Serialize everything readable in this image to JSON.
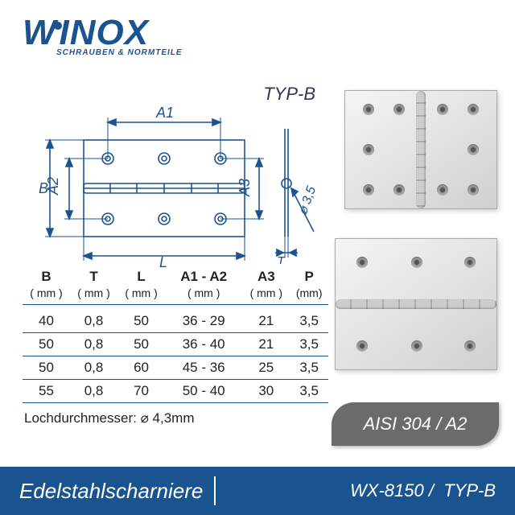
{
  "brand": {
    "name": "WINOX",
    "tagline": "SCHRAUBEN & NORMTEILE"
  },
  "variant_label": "TYP-B",
  "drawing": {
    "dims": {
      "L": "L",
      "B": "B",
      "A1": "A1",
      "A2": "A2",
      "A3": "A3",
      "T": "T",
      "pin": "⌀ 3,5"
    },
    "line_color": "#1a5490",
    "hole_spacing": {
      "cols": [
        0.2,
        0.5,
        0.8
      ],
      "rows": [
        0.28,
        0.72
      ]
    }
  },
  "table": {
    "columns": [
      "B",
      "T",
      "L",
      "A1 - A2",
      "A3",
      "P"
    ],
    "unit": "( mm )",
    "unit_p": "(mm)",
    "rows": [
      [
        "40",
        "0,8",
        "50",
        "36 - 29",
        "21",
        "3,5"
      ],
      [
        "50",
        "0,8",
        "50",
        "36 - 40",
        "21",
        "3,5"
      ],
      [
        "50",
        "0,8",
        "60",
        "45 - 36",
        "25",
        "3,5"
      ],
      [
        "55",
        "0,8",
        "70",
        "50 - 40",
        "30",
        "3,5"
      ]
    ]
  },
  "hole_note": "Lochdurchmesser: ⌀ 4,3mm",
  "material_badge": "AISI 304 / A2",
  "footer": {
    "title": "Edelstahlscharniere",
    "code": "WX-8150 /",
    "variant": "TYP-B"
  },
  "colors": {
    "brand_blue": "#1a5490",
    "badge_gray": "#6b6b6b",
    "white": "#ffffff"
  }
}
